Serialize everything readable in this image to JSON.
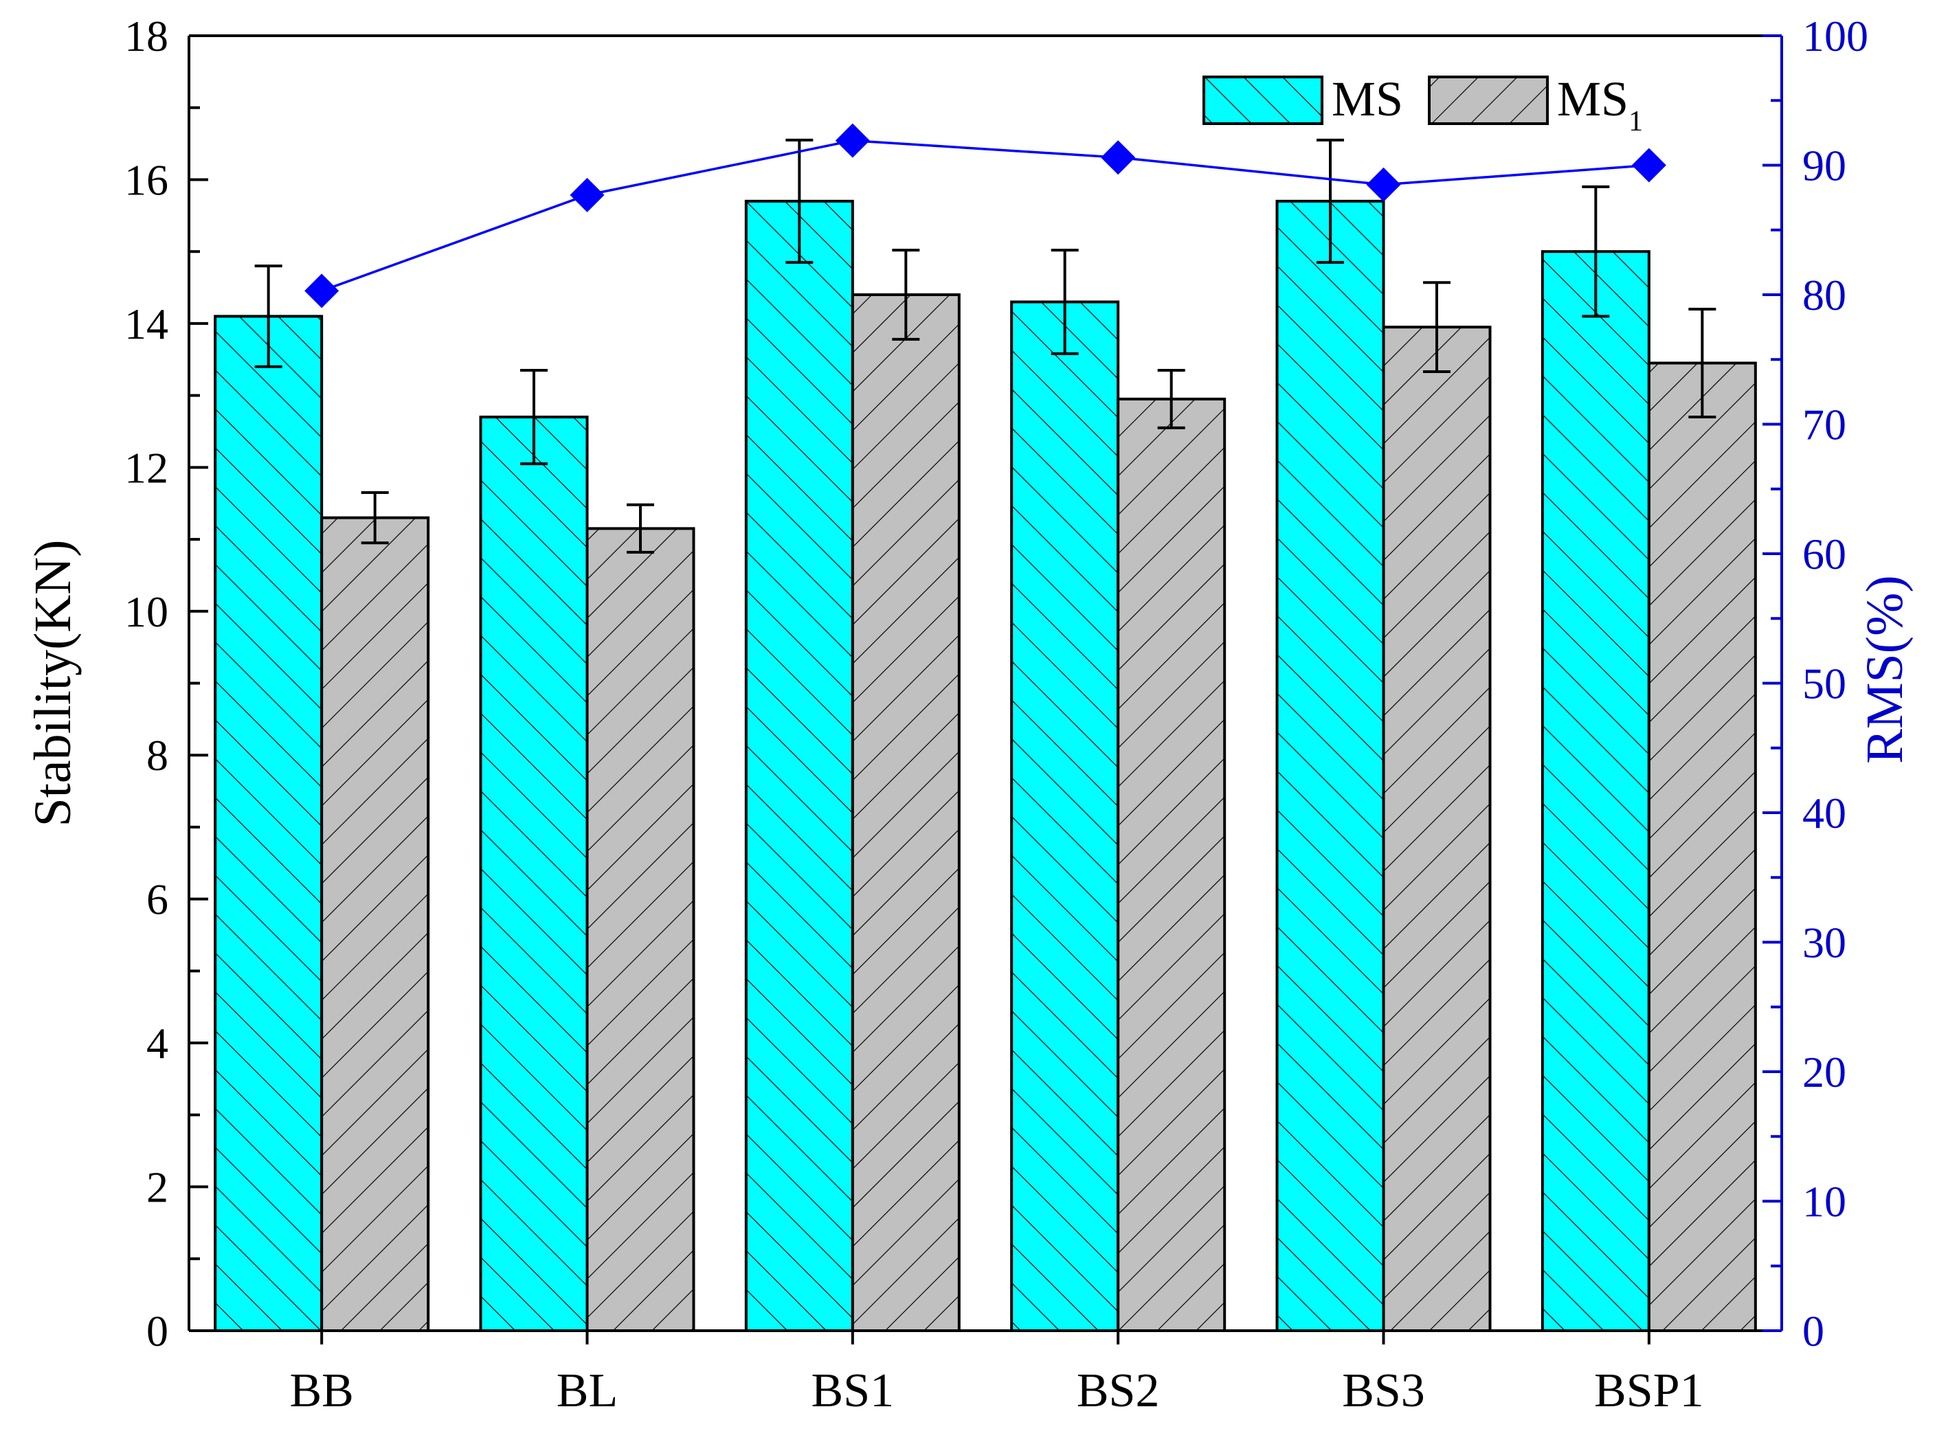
{
  "chart_data": {
    "type": "bar",
    "categories": [
      "BB",
      "BL",
      "BS1",
      "BS2",
      "BS3",
      "BSP1"
    ],
    "series": [
      {
        "name": "MS",
        "axis": "left",
        "values": [
          14.1,
          12.7,
          15.7,
          14.3,
          15.7,
          15.0
        ],
        "errors": [
          0.7,
          0.65,
          0.85,
          0.72,
          0.85,
          0.9
        ]
      },
      {
        "name": "MS",
        "name_subscript": "1",
        "axis": "left",
        "values": [
          11.3,
          11.15,
          14.4,
          12.95,
          13.95,
          13.45
        ],
        "errors": [
          0.35,
          0.33,
          0.62,
          0.4,
          0.62,
          0.75
        ]
      },
      {
        "name": "RMS",
        "axis": "right",
        "type": "line",
        "values": [
          80.3,
          87.7,
          91.9,
          90.6,
          88.5,
          90.0
        ]
      }
    ],
    "ylabel": "Stability(KN)",
    "y2label": "RMS(%)",
    "ylim": [
      0,
      18
    ],
    "y2lim": [
      0,
      100
    ],
    "yticks": [
      0,
      2,
      4,
      6,
      8,
      10,
      12,
      14,
      16,
      18
    ],
    "y2ticks": [
      0,
      10,
      20,
      30,
      40,
      50,
      60,
      70,
      80,
      90,
      100
    ],
    "legend_position": "top-right",
    "colors": {
      "ms_fill": "#00ffff",
      "ms1_fill": "#c0c0c0",
      "rms_line": "#0000ff",
      "right_axis": "#0000cc"
    }
  }
}
